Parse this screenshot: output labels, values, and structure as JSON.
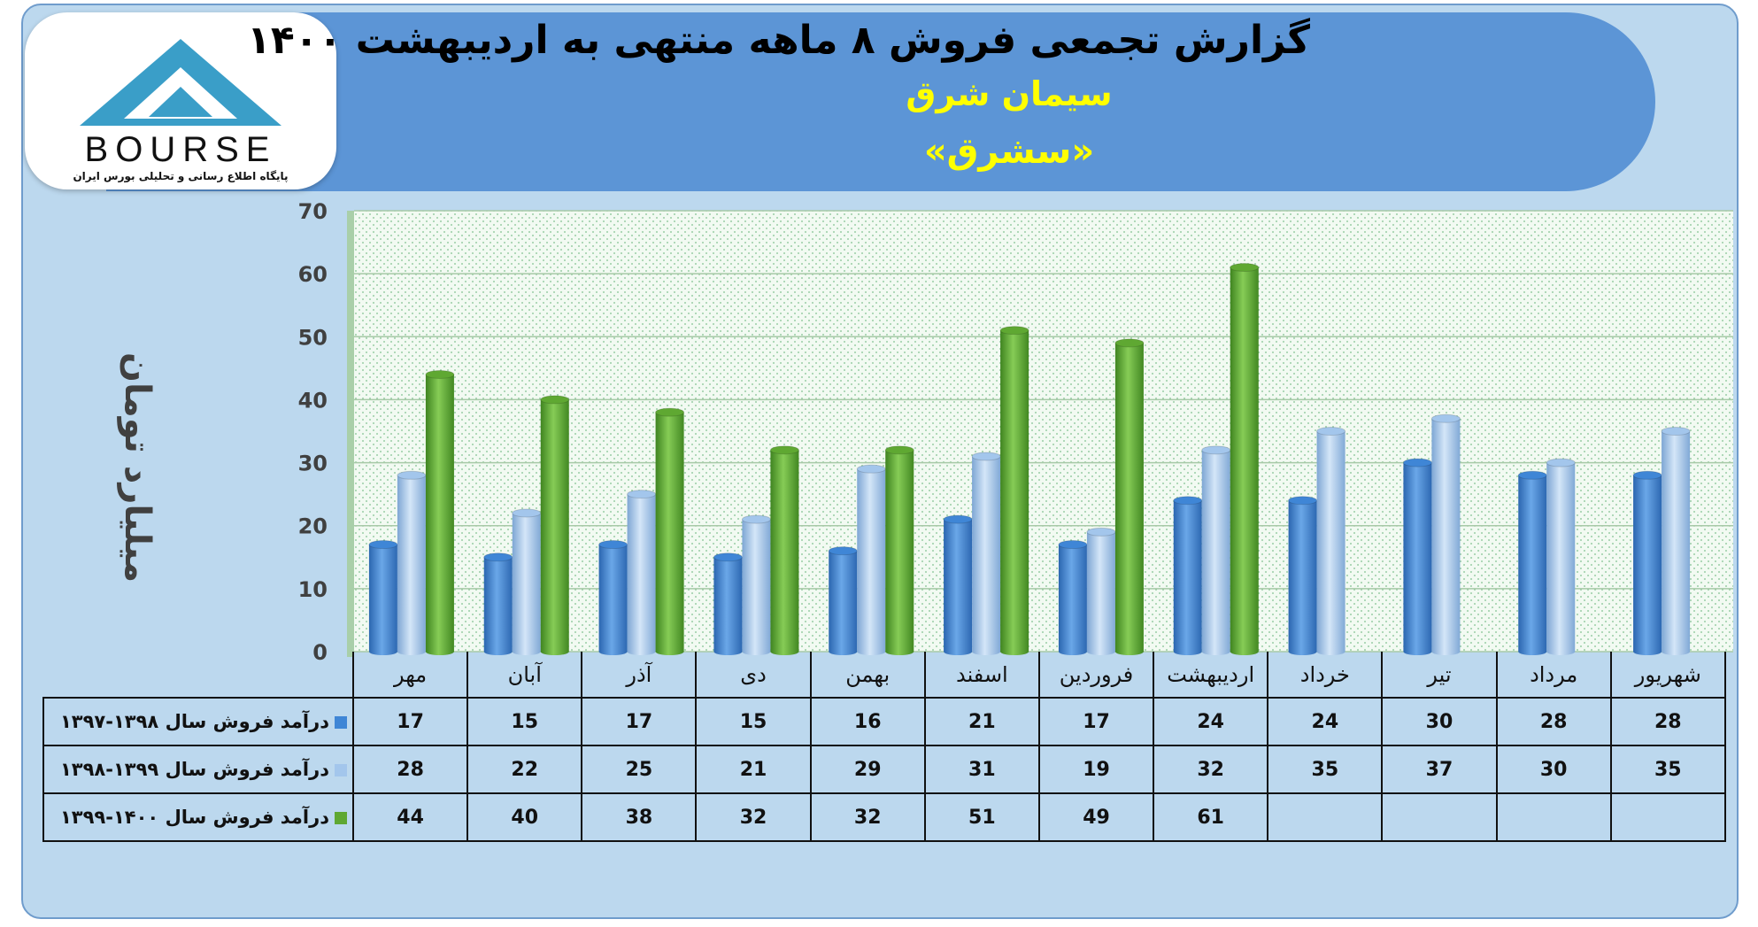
{
  "title": "گزارش تجمعی فروش ۸ ماهه منتهی به اردیبهشت ۱۴۰۰",
  "company": "سیمان شرق",
  "ticker": "«سشرق»",
  "logo": {
    "word": "BOURSE",
    "tagline": "پایگاه اطلاع رسانی و تحلیلی بورس ایران"
  },
  "colors": {
    "series1": "#3f86d6",
    "series2": "#a3c6ec",
    "series3": "#5fa832",
    "panel": "#bcd8ee",
    "banner": "#5c95d6"
  },
  "chart_data": {
    "type": "bar",
    "ylabel": "میلیارد تومان",
    "ylim": [
      0,
      70
    ],
    "yticks": [
      0,
      10,
      20,
      30,
      40,
      50,
      60,
      70
    ],
    "categories": [
      "مهر",
      "آبان",
      "آذر",
      "دی",
      "بهمن",
      "اسفند",
      "فروردین",
      "اردیبهشت",
      "خرداد",
      "تیر",
      "مرداد",
      "شهریور"
    ],
    "series": [
      {
        "name": "درآمد فروش سال ۱۳۹۸-۱۳۹۷",
        "values": [
          17,
          15,
          17,
          15,
          16,
          21,
          17,
          24,
          24,
          30,
          28,
          28
        ]
      },
      {
        "name": "درآمد فروش سال ۱۳۹۹-۱۳۹۸",
        "values": [
          28,
          22,
          25,
          21,
          29,
          31,
          19,
          32,
          35,
          37,
          30,
          35
        ]
      },
      {
        "name": "درآمد فروش سال ۱۴۰۰-۱۳۹۹",
        "values": [
          44,
          40,
          38,
          32,
          32,
          51,
          49,
          61,
          null,
          null,
          null,
          null
        ]
      }
    ],
    "grid": true,
    "legend": "table-left"
  }
}
